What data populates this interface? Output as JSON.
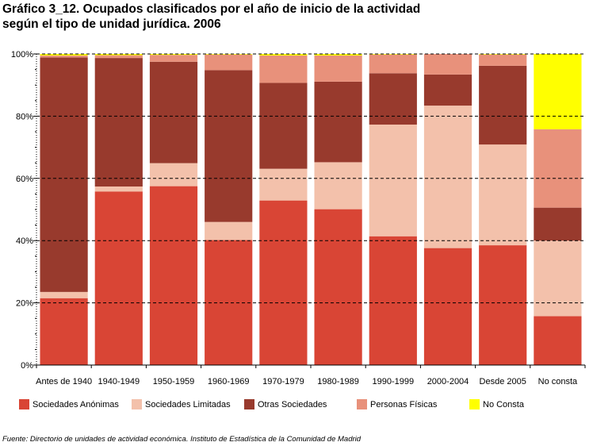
{
  "title_lines": [
    "Gráfico 3_12. Ocupados clasificados por el año de inicio de la actividad",
    "según el tipo de unidad jurídica. 2006"
  ],
  "source": "Fuente: Directorio de unidades de actividad económica. Instituto de Estadística de la Comunidad de Madrid",
  "colors": {
    "Sociedades Anónimas": "#d94535",
    "Sociedades Limitadas": "#f3c1ab",
    "Otras Sociedades": "#983a2d",
    "Personas Físicas": "#e8917b",
    "No Consta": "#ffff00"
  },
  "chart_data": {
    "type": "bar",
    "stacked": true,
    "percent": true,
    "title": "Gráfico 3_12. Ocupados clasificados por el año de inicio de la actividad según el tipo de unidad jurídica. 2006",
    "xlabel": "",
    "ylabel": "",
    "ylim": [
      0,
      100
    ],
    "yticks": [
      "0%",
      "20%",
      "40%",
      "60%",
      "80%",
      "100%"
    ],
    "grid": true,
    "legend_position": "bottom",
    "categories": [
      "Antes de 1940",
      "1940-1949",
      "1950-1959",
      "1960-1969",
      "1970-1979",
      "1980-1989",
      "1990-1999",
      "2000-2004",
      "Desde 2005",
      "No consta"
    ],
    "series": [
      {
        "name": "Sociedades Anónimas",
        "values": [
          21.5,
          55.8,
          57.5,
          40.2,
          52.9,
          50.1,
          41.4,
          37.6,
          38.5,
          15.7
        ]
      },
      {
        "name": "Sociedades Limitadas",
        "values": [
          2.0,
          1.6,
          7.4,
          5.8,
          10.2,
          15.1,
          35.9,
          45.8,
          32.4,
          24.3
        ]
      },
      {
        "name": "Otras Sociedades",
        "values": [
          75.4,
          41.3,
          32.6,
          48.8,
          27.6,
          25.9,
          16.5,
          10.0,
          25.3,
          10.6
        ]
      },
      {
        "name": "Personas Físicas",
        "values": [
          0.6,
          0.9,
          2.2,
          5.0,
          8.8,
          8.4,
          6.0,
          6.6,
          3.6,
          25.2
        ]
      },
      {
        "name": "No Consta",
        "values": [
          0.5,
          0.4,
          0.3,
          0.2,
          0.5,
          0.5,
          0.2,
          0.0,
          0.2,
          24.2
        ]
      }
    ]
  }
}
